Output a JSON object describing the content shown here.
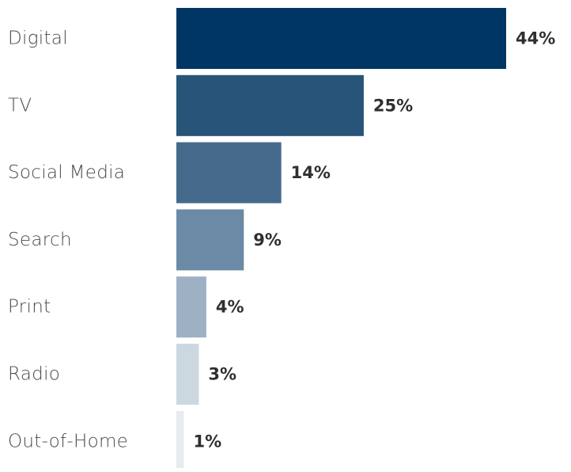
{
  "chart_data": {
    "type": "bar",
    "orientation": "horizontal",
    "categories": [
      "Digital",
      "TV",
      "Social Media",
      "Search",
      "Print",
      "Radio",
      "Out-of-Home"
    ],
    "values": [
      44,
      25,
      14,
      9,
      4,
      3,
      1
    ],
    "value_labels": [
      "44%",
      "25%",
      "14%",
      "9%",
      "4%",
      "3%",
      "1%"
    ],
    "unit": "%",
    "title": "",
    "xlabel": "",
    "ylabel": "",
    "xlim": [
      0,
      44
    ],
    "grid": false,
    "legend": "none",
    "bar_colors": [
      "#003663",
      "#275478",
      "#466a8c",
      "#6a8aa5",
      "#9db0c4",
      "#ccd8e1",
      "#e6ecf1"
    ]
  }
}
